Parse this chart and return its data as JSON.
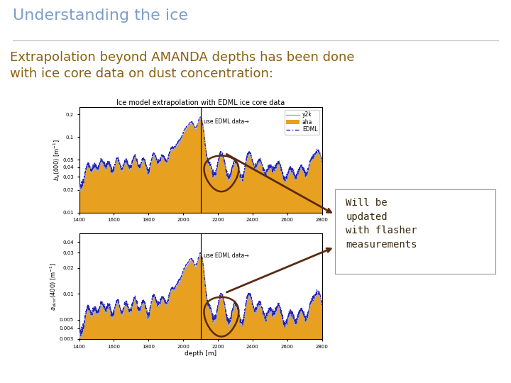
{
  "title": "Understanding the ice",
  "title_color": "#7B9EC8",
  "title_fontsize": 16,
  "subtitle": "Extrapolation beyond AMANDA depths has been done\nwith ice core data on dust concentration:",
  "subtitle_color": "#8B6010",
  "subtitle_fontsize": 13,
  "background_color": "#ffffff",
  "annotation_text": "Will be\nupdated\nwith flasher\nmeasurements",
  "annotation_text_color": "#3a2a10",
  "annotation_fontsize": 10,
  "plot_title": "Ice model extrapolation with EDML ice core data",
  "plot_title_fontsize": 7,
  "arrow_color": "#5A2A10",
  "circle_color": "#5A2A10",
  "gold_color": "#E8A020",
  "line_y2k_color": "#aaaaaa",
  "line_edml_color": "#2222bb",
  "divider_depth": 2100,
  "ylim1": [
    0.01,
    0.25
  ],
  "ylim2": [
    0.003,
    0.05
  ],
  "yticks1": [
    0.01,
    0.02,
    0.03,
    0.04,
    0.05,
    0.1,
    0.2
  ],
  "ytick_labels1": [
    "0.01",
    "0.02",
    "0.03",
    "0.04",
    "0.05",
    "0.1",
    "0.2"
  ],
  "yticks2": [
    0.003,
    0.004,
    0.005,
    0.01,
    0.02,
    0.03,
    0.04
  ],
  "ytick_labels2": [
    "0.003",
    "0.004",
    "0.005",
    "0.01",
    "0.02",
    "0.03",
    "0.04"
  ],
  "xticks": [
    1400,
    1600,
    1800,
    2000,
    2200,
    2400,
    2600,
    2800
  ],
  "xlim": [
    1400,
    2800
  ],
  "tick_fontsize": 5,
  "axis_label_fontsize": 6,
  "edml_annotation": "use EDML data→",
  "edml_annot_fontsize": 5.5,
  "legend_fontsize": 5.5
}
